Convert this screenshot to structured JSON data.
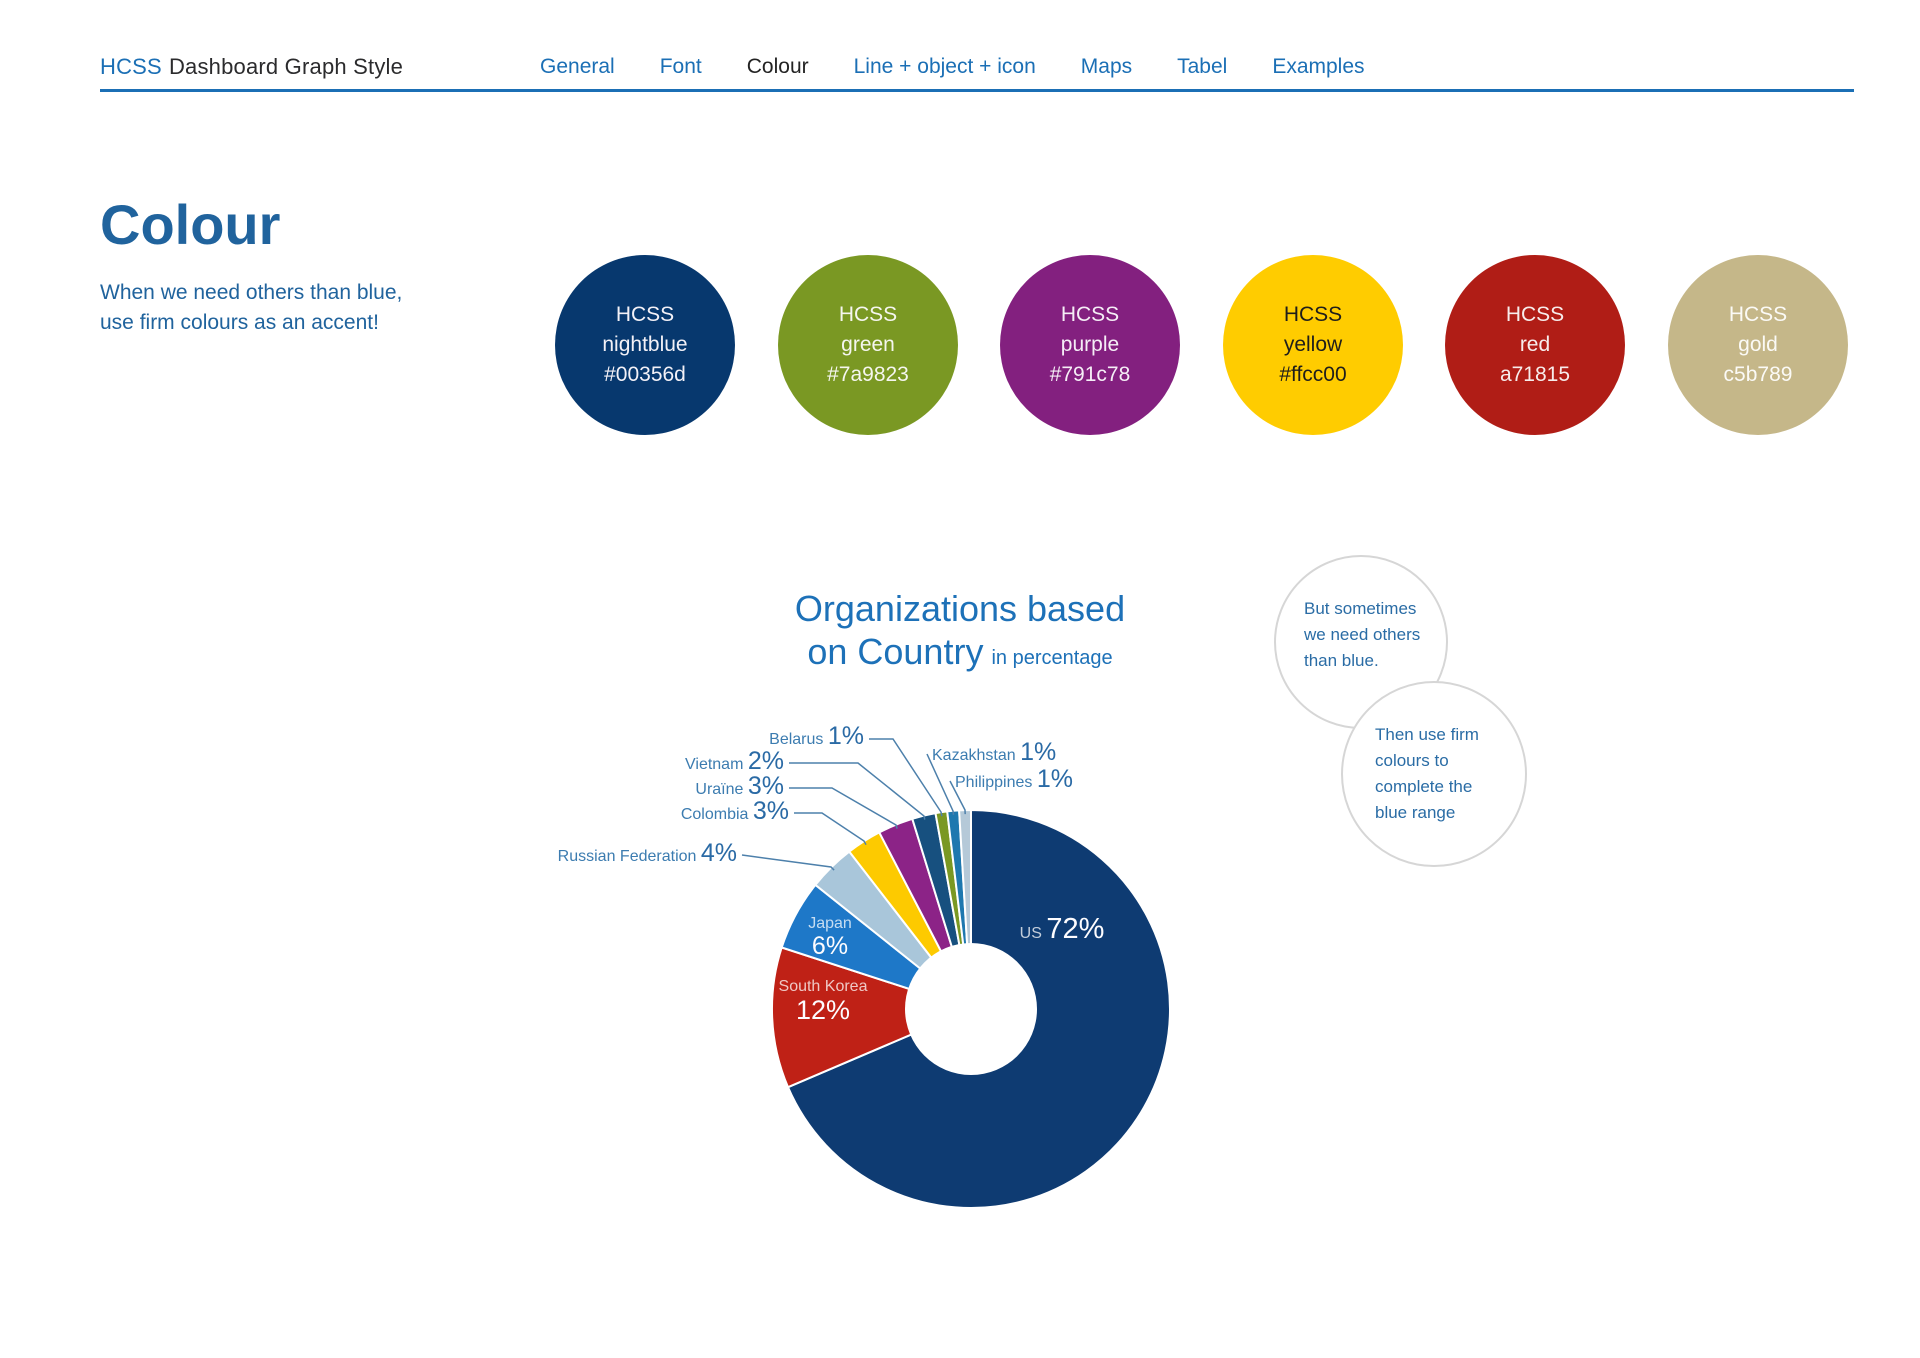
{
  "header": {
    "brand": {
      "primary": "HCSS",
      "secondary": "Dashboard Graph Style"
    },
    "nav": [
      {
        "label": "General",
        "active": false
      },
      {
        "label": "Font",
        "active": false
      },
      {
        "label": "Colour",
        "active": true
      },
      {
        "label": "Line + object + icon",
        "active": false
      },
      {
        "label": "Maps",
        "active": false
      },
      {
        "label": "Tabel",
        "active": false
      },
      {
        "label": "Examples",
        "active": false
      }
    ]
  },
  "page": {
    "title": "Colour",
    "intro": [
      "When we need others than blue,",
      "use firm colours as an accent!"
    ]
  },
  "swatches": [
    {
      "name": "HCSS",
      "shade": "nightblue",
      "hex": "#00356d",
      "fill": "#07386e",
      "text_color": "#f3f1f7"
    },
    {
      "name": "HCSS",
      "shade": "green",
      "hex": "#7a9823",
      "fill": "#7a9823",
      "text_color": "#f5f6ef"
    },
    {
      "name": "HCSS",
      "shade": "purple",
      "hex": "#791c78",
      "fill": "#83207f",
      "text_color": "#f5eef6"
    },
    {
      "name": "HCSS",
      "shade": "yellow",
      "hex": "#ffcc00",
      "fill": "#ffcc00",
      "text_color": "#1f1e1b"
    },
    {
      "name": "HCSS",
      "shade": "red",
      "hex": "a71815",
      "fill": "#b01d16",
      "text_color": "#f7eceb"
    },
    {
      "name": "HCSS",
      "shade": "gold",
      "hex": "c5b789",
      "fill": "#c5b789",
      "text_color": "#fbfaf6"
    }
  ],
  "chart_data": {
    "type": "pie",
    "donut": true,
    "title_line1": "Organizations based",
    "title_line2": "on Country",
    "subtitle": "in percentage",
    "legend_position": "labels-on-chart",
    "series": [
      {
        "name": "US",
        "value": 72,
        "color": "#0e3b72",
        "label_inside": true
      },
      {
        "name": "South Korea",
        "value": 12,
        "color": "#bf2116",
        "label_inside": true
      },
      {
        "name": "Japan",
        "value": 6,
        "color": "#1e78c8",
        "label_inside": true
      },
      {
        "name": "Russian Federation",
        "value": 4,
        "color": "#a9c6da",
        "label_inside": false
      },
      {
        "name": "Colombia",
        "value": 3,
        "color": "#fdca00",
        "label_inside": false
      },
      {
        "name": "Uraïne",
        "value": 3,
        "color": "#8c2387",
        "label_inside": false
      },
      {
        "name": "Vietnam",
        "value": 2,
        "color": "#17507f",
        "label_inside": false
      },
      {
        "name": "Belarus",
        "value": 1,
        "color": "#7a9823",
        "label_inside": false
      },
      {
        "name": "Kazakhstan",
        "value": 1,
        "color": "#1e78af",
        "label_inside": false
      },
      {
        "name": "Philippines",
        "value": 1,
        "color": "#b5c9d8",
        "label_inside": false
      }
    ]
  },
  "callouts": [
    {
      "text": "But sometimes we need others than blue."
    },
    {
      "text": "Then use firm colours to complete the blue range"
    }
  ]
}
